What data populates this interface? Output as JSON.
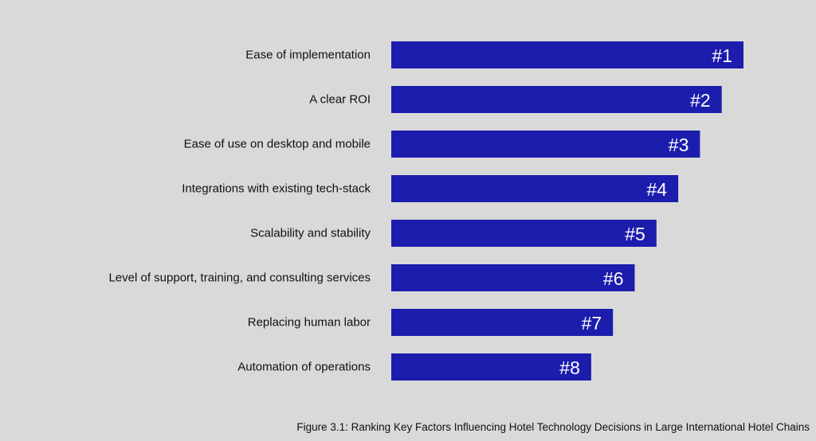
{
  "chart_data": {
    "type": "bar",
    "orientation": "horizontal",
    "categories": [
      "Ease of implementation",
      "A clear ROI",
      "Ease of use on desktop and mobile",
      "Integrations with existing tech-stack",
      "Scalability and stability",
      "Level of support, training, and consulting services",
      "Replacing human labor",
      "Automation of operations"
    ],
    "ranks": [
      1,
      2,
      3,
      4,
      5,
      6,
      7,
      8
    ],
    "values": [
      8,
      7,
      6,
      5,
      4,
      3,
      2,
      1
    ],
    "data_labels": [
      "#1",
      "#2",
      "#3",
      "#4",
      "#5",
      "#6",
      "#7",
      "#8"
    ],
    "caption": "Figure 3.1: Ranking Key Factors Influencing Hotel Technology Decisions in Large International Hotel Chains",
    "grid": false,
    "axes_visible": false
  },
  "colors": {
    "bar": "#1c1cad",
    "background": "#d9d9d9",
    "bar_label": "#ffffff",
    "text": "#111111"
  }
}
